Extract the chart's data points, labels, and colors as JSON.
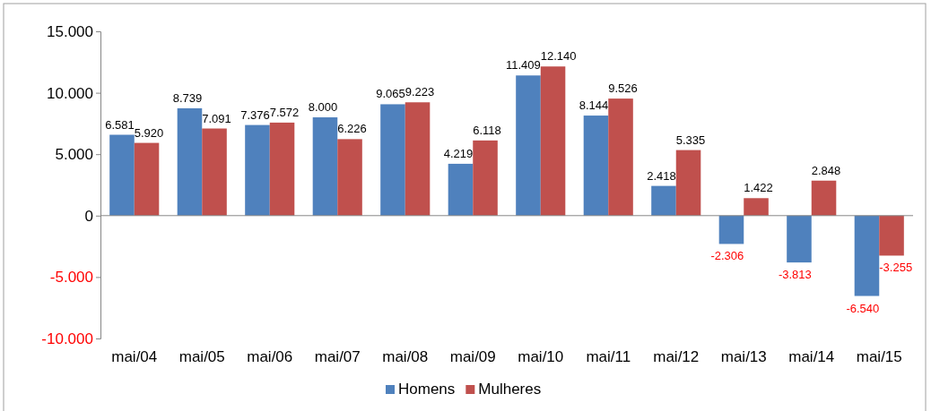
{
  "chart_data": {
    "type": "bar",
    "categories": [
      "mai/04",
      "mai/05",
      "mai/06",
      "mai/07",
      "mai/08",
      "mai/09",
      "mai/10",
      "mai/11",
      "mai/12",
      "mai/13",
      "mai/14",
      "mai/15"
    ],
    "series": [
      {
        "name": "Homens",
        "color": "#4f81bd",
        "values": [
          6581,
          8739,
          7376,
          8000,
          9065,
          4219,
          11409,
          8144,
          2418,
          -2306,
          -3813,
          -6540
        ],
        "value_labels": [
          "6.581",
          "8.739",
          "7.376",
          "8.000",
          "9.065",
          "4.219",
          "11.409",
          "8.144",
          "2.418",
          "-2.306",
          "-3.813",
          "-6.540"
        ]
      },
      {
        "name": "Mulheres",
        "color": "#c0504d",
        "values": [
          5920,
          7091,
          7572,
          6226,
          9223,
          6118,
          12140,
          9526,
          5335,
          1422,
          2848,
          -3255
        ],
        "value_labels": [
          "5.920",
          "7.091",
          "7.572",
          "6.226",
          "9.223",
          "6.118",
          "12.140",
          "9.526",
          "5.335",
          "1.422",
          "2.848",
          "-3.255"
        ]
      }
    ],
    "ylim": [
      -10000,
      15000
    ],
    "yticks": [
      {
        "value": -10000,
        "label": "-10.000"
      },
      {
        "value": -5000,
        "label": "-5.000"
      },
      {
        "value": 0,
        "label": "0"
      },
      {
        "value": 5000,
        "label": "5.000"
      },
      {
        "value": 10000,
        "label": "10.000"
      },
      {
        "value": 15000,
        "label": "15.000"
      }
    ],
    "legend": "bottom"
  }
}
